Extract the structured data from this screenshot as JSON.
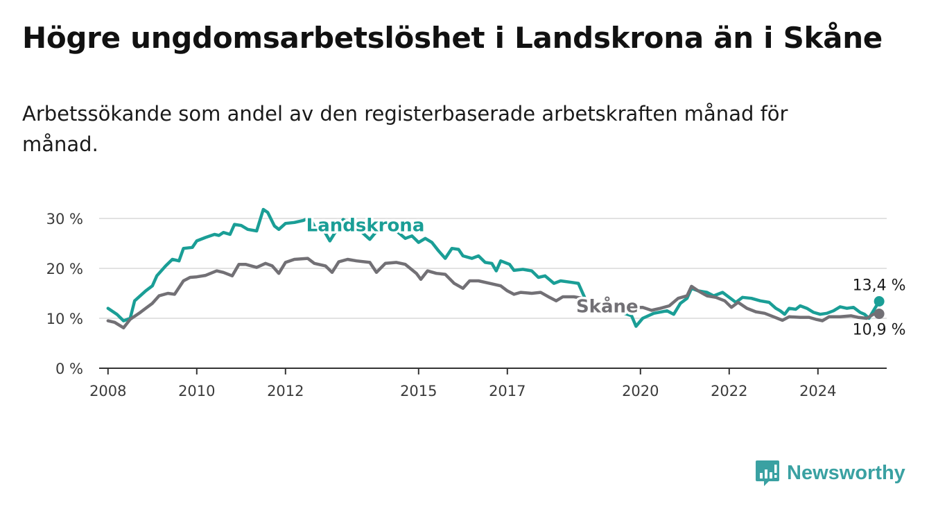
{
  "header": {
    "title": "Högre ungdomsarbetslöshet i Landskrona än i Skåne",
    "subtitle": "Arbetssökande som andel av den registerbaserade arbetskraften månad för månad."
  },
  "brand": {
    "name": "Newsworthy",
    "color": "#3aa1a2"
  },
  "chart_data": {
    "type": "line",
    "title": "Högre ungdomsarbetslöshet i Landskrona än i Skåne",
    "subtitle": "Arbetssökande som andel av den registerbaserade arbetskraften månad för månad.",
    "xlabel": "",
    "ylabel": "",
    "xlim": [
      2007.8,
      2025.55
    ],
    "ylim": [
      0,
      30
    ],
    "grid": true,
    "legend": "inline",
    "y_ticks": [
      {
        "value": 0,
        "label": "0 %"
      },
      {
        "value": 10,
        "label": "10 %"
      },
      {
        "value": 20,
        "label": "20 %"
      },
      {
        "value": 30,
        "label": "30 %"
      }
    ],
    "x_ticks": [
      {
        "value": 2008,
        "label": "2008"
      },
      {
        "value": 2010,
        "label": "2010"
      },
      {
        "value": 2012,
        "label": "2012"
      },
      {
        "value": 2015,
        "label": "2015"
      },
      {
        "value": 2017,
        "label": "2017"
      },
      {
        "value": 2020,
        "label": "2020"
      },
      {
        "value": 2022,
        "label": "2022"
      },
      {
        "value": 2024,
        "label": "2024"
      }
    ],
    "series": [
      {
        "name": "Landskrona",
        "color": "#1a9e96",
        "end_label": "13,4 %",
        "points": [
          [
            2008.0,
            12.0
          ],
          [
            2008.2,
            10.8
          ],
          [
            2008.35,
            9.5
          ],
          [
            2008.5,
            10.0
          ],
          [
            2008.6,
            13.5
          ],
          [
            2008.85,
            15.5
          ],
          [
            2009.0,
            16.5
          ],
          [
            2009.1,
            18.5
          ],
          [
            2009.3,
            20.5
          ],
          [
            2009.45,
            21.8
          ],
          [
            2009.6,
            21.5
          ],
          [
            2009.7,
            24.0
          ],
          [
            2009.9,
            24.2
          ],
          [
            2010.0,
            25.5
          ],
          [
            2010.2,
            26.2
          ],
          [
            2010.4,
            26.8
          ],
          [
            2010.5,
            26.6
          ],
          [
            2010.6,
            27.2
          ],
          [
            2010.75,
            26.8
          ],
          [
            2010.85,
            28.8
          ],
          [
            2011.0,
            28.6
          ],
          [
            2011.15,
            27.8
          ],
          [
            2011.35,
            27.5
          ],
          [
            2011.5,
            31.8
          ],
          [
            2011.6,
            31.2
          ],
          [
            2011.75,
            28.5
          ],
          [
            2011.85,
            27.8
          ],
          [
            2012.0,
            29.0
          ],
          [
            2012.2,
            29.2
          ],
          [
            2012.4,
            29.6
          ],
          [
            2012.55,
            30.2
          ],
          [
            2012.7,
            27.5
          ],
          [
            2012.85,
            27.8
          ],
          [
            2013.0,
            25.5
          ],
          [
            2013.3,
            29.8
          ],
          [
            2013.6,
            28.2
          ],
          [
            2013.9,
            25.8
          ],
          [
            2014.2,
            29.0
          ],
          [
            2014.5,
            27.5
          ],
          [
            2014.7,
            26.0
          ],
          [
            2014.85,
            26.5
          ],
          [
            2015.0,
            25.2
          ],
          [
            2015.15,
            26.0
          ],
          [
            2015.3,
            25.2
          ],
          [
            2015.45,
            23.5
          ],
          [
            2015.6,
            22.0
          ],
          [
            2015.75,
            24.0
          ],
          [
            2015.9,
            23.8
          ],
          [
            2016.0,
            22.5
          ],
          [
            2016.2,
            22.0
          ],
          [
            2016.35,
            22.5
          ],
          [
            2016.5,
            21.2
          ],
          [
            2016.65,
            21.0
          ],
          [
            2016.75,
            19.5
          ],
          [
            2016.85,
            21.5
          ],
          [
            2017.05,
            20.8
          ],
          [
            2017.15,
            19.6
          ],
          [
            2017.35,
            19.8
          ],
          [
            2017.55,
            19.5
          ],
          [
            2017.7,
            18.2
          ],
          [
            2017.85,
            18.5
          ],
          [
            2018.05,
            17.0
          ],
          [
            2018.2,
            17.5
          ],
          [
            2018.45,
            17.2
          ],
          [
            2018.6,
            17.0
          ],
          [
            2018.75,
            14.0
          ],
          [
            2018.9,
            13.2
          ],
          [
            2019.8,
            10.5
          ],
          [
            2019.9,
            8.4
          ],
          [
            2020.05,
            10.0
          ],
          [
            2020.3,
            11.0
          ],
          [
            2020.6,
            11.5
          ],
          [
            2020.75,
            10.8
          ],
          [
            2020.9,
            13.0
          ],
          [
            2021.05,
            14.0
          ],
          [
            2021.15,
            16.0
          ],
          [
            2021.3,
            15.5
          ],
          [
            2021.5,
            15.2
          ],
          [
            2021.65,
            14.5
          ],
          [
            2021.85,
            15.2
          ],
          [
            2022.0,
            14.2
          ],
          [
            2022.15,
            13.2
          ],
          [
            2022.3,
            14.2
          ],
          [
            2022.5,
            14.0
          ],
          [
            2022.7,
            13.5
          ],
          [
            2022.9,
            13.2
          ],
          [
            2023.05,
            12.0
          ],
          [
            2023.15,
            11.5
          ],
          [
            2023.25,
            10.8
          ],
          [
            2023.35,
            12.0
          ],
          [
            2023.5,
            11.8
          ],
          [
            2023.6,
            12.5
          ],
          [
            2023.75,
            12.0
          ],
          [
            2023.9,
            11.2
          ],
          [
            2024.05,
            10.8
          ],
          [
            2024.2,
            11.0
          ],
          [
            2024.35,
            11.5
          ],
          [
            2024.5,
            12.3
          ],
          [
            2024.65,
            12.0
          ],
          [
            2024.8,
            12.2
          ],
          [
            2024.95,
            11.2
          ],
          [
            2025.05,
            10.8
          ],
          [
            2025.15,
            10.0
          ],
          [
            2025.25,
            11.5
          ],
          [
            2025.38,
            13.4
          ]
        ]
      },
      {
        "name": "Skåne",
        "color": "#727075",
        "end_label": "10,9 %",
        "points": [
          [
            2008.0,
            9.5
          ],
          [
            2008.15,
            9.2
          ],
          [
            2008.35,
            8.1
          ],
          [
            2008.5,
            9.8
          ],
          [
            2008.7,
            11.0
          ],
          [
            2008.85,
            12.0
          ],
          [
            2009.0,
            13.0
          ],
          [
            2009.15,
            14.5
          ],
          [
            2009.35,
            15.0
          ],
          [
            2009.5,
            14.8
          ],
          [
            2009.7,
            17.5
          ],
          [
            2009.85,
            18.2
          ],
          [
            2010.0,
            18.3
          ],
          [
            2010.2,
            18.6
          ],
          [
            2010.45,
            19.5
          ],
          [
            2010.6,
            19.2
          ],
          [
            2010.8,
            18.5
          ],
          [
            2010.95,
            20.8
          ],
          [
            2011.1,
            20.8
          ],
          [
            2011.35,
            20.2
          ],
          [
            2011.55,
            21.0
          ],
          [
            2011.7,
            20.5
          ],
          [
            2011.85,
            19.0
          ],
          [
            2012.0,
            21.2
          ],
          [
            2012.2,
            21.8
          ],
          [
            2012.5,
            22.0
          ],
          [
            2012.65,
            21.0
          ],
          [
            2012.9,
            20.5
          ],
          [
            2013.05,
            19.2
          ],
          [
            2013.2,
            21.3
          ],
          [
            2013.4,
            21.8
          ],
          [
            2013.6,
            21.5
          ],
          [
            2013.9,
            21.2
          ],
          [
            2014.05,
            19.2
          ],
          [
            2014.25,
            21.0
          ],
          [
            2014.5,
            21.2
          ],
          [
            2014.7,
            20.8
          ],
          [
            2014.95,
            19.0
          ],
          [
            2015.05,
            17.8
          ],
          [
            2015.2,
            19.5
          ],
          [
            2015.4,
            19.0
          ],
          [
            2015.6,
            18.8
          ],
          [
            2015.8,
            17.0
          ],
          [
            2016.0,
            16.0
          ],
          [
            2016.15,
            17.5
          ],
          [
            2016.35,
            17.5
          ],
          [
            2016.6,
            17.0
          ],
          [
            2016.85,
            16.5
          ],
          [
            2017.0,
            15.5
          ],
          [
            2017.15,
            14.8
          ],
          [
            2017.3,
            15.2
          ],
          [
            2017.55,
            15.0
          ],
          [
            2017.75,
            15.2
          ],
          [
            2017.95,
            14.2
          ],
          [
            2018.1,
            13.5
          ],
          [
            2018.25,
            14.3
          ],
          [
            2018.5,
            14.3
          ],
          [
            2018.7,
            14.0
          ],
          [
            2018.9,
            13.0
          ],
          [
            2019.05,
            12.0
          ],
          [
            2020.05,
            12.2
          ],
          [
            2020.25,
            11.6
          ],
          [
            2020.45,
            12.0
          ],
          [
            2020.65,
            12.5
          ],
          [
            2020.85,
            14.0
          ],
          [
            2021.05,
            14.5
          ],
          [
            2021.15,
            16.4
          ],
          [
            2021.3,
            15.5
          ],
          [
            2021.5,
            14.5
          ],
          [
            2021.7,
            14.2
          ],
          [
            2021.9,
            13.5
          ],
          [
            2022.05,
            12.2
          ],
          [
            2022.2,
            13.2
          ],
          [
            2022.4,
            12.0
          ],
          [
            2022.6,
            11.3
          ],
          [
            2022.8,
            11.0
          ],
          [
            2023.0,
            10.3
          ],
          [
            2023.2,
            9.6
          ],
          [
            2023.35,
            10.3
          ],
          [
            2023.6,
            10.2
          ],
          [
            2023.8,
            10.2
          ],
          [
            2023.95,
            9.8
          ],
          [
            2024.1,
            9.5
          ],
          [
            2024.25,
            10.3
          ],
          [
            2024.5,
            10.3
          ],
          [
            2024.75,
            10.5
          ],
          [
            2024.9,
            10.2
          ],
          [
            2025.1,
            10.0
          ],
          [
            2025.25,
            10.8
          ],
          [
            2025.38,
            10.9
          ]
        ]
      }
    ]
  }
}
